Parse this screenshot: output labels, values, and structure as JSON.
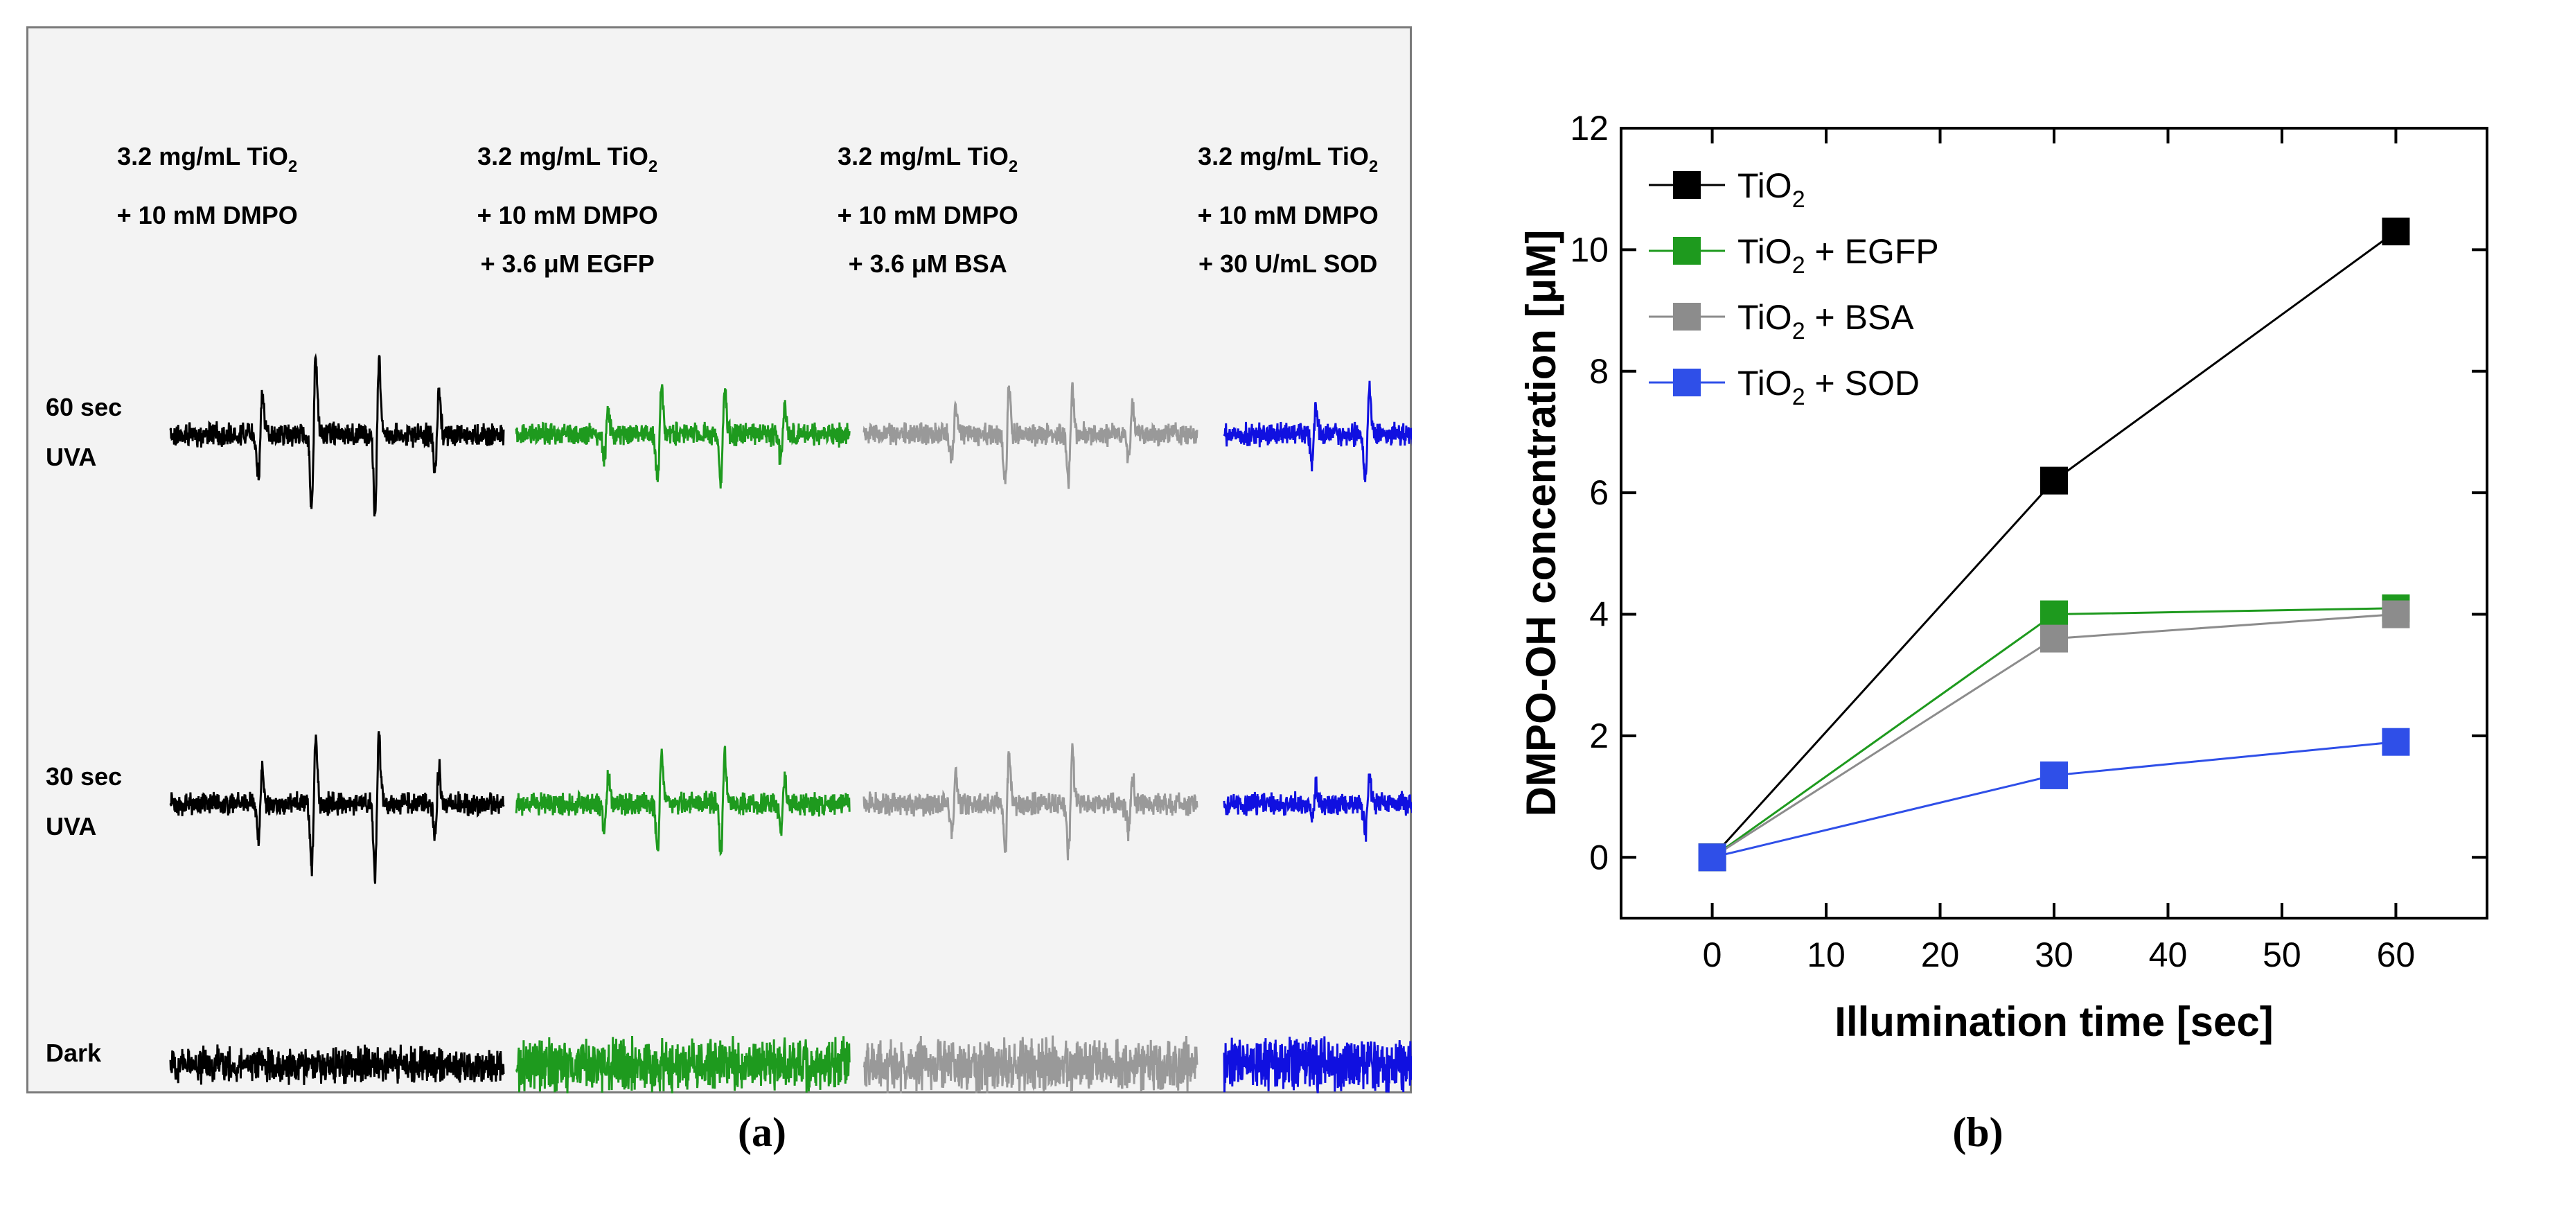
{
  "panel_a": {
    "caption": "(a)",
    "columns": [
      {
        "line1": "3.2 mg/mL TiO",
        "sub": "2",
        "line2": "+ 10 mM DMPO",
        "line3": "",
        "color": "#000000"
      },
      {
        "line1": "3.2 mg/mL TiO",
        "sub": "2",
        "line2": "+ 10 mM DMPO",
        "line3": "+ 3.6 μM EGFP",
        "color": "#1e9a1e"
      },
      {
        "line1": "3.2 mg/mL TiO",
        "sub": "2",
        "line2": "+ 10 mM DMPO",
        "line3": "+ 3.6 μM BSA",
        "color": "#999999"
      },
      {
        "line1": "3.2 mg/mL TiO",
        "sub": "2",
        "line2": "+ 10 mM DMPO",
        "line3": "+ 30 U/mL SOD",
        "color": "#1010e0"
      }
    ],
    "rows": [
      {
        "line1": "60 sec",
        "line2": "UVA"
      },
      {
        "line1": "30 sec",
        "line2": "UVA"
      },
      {
        "line1": "Dark",
        "line2": ""
      }
    ],
    "signal_scale": [
      [
        1.0,
        0.62,
        0.62,
        0.62
      ],
      [
        0.9,
        0.65,
        0.65,
        0.38
      ],
      [
        0.0,
        0.0,
        0.0,
        0.0
      ]
    ]
  },
  "chart_data": {
    "type": "line",
    "caption": "(b)",
    "xlabel": "Illumination time [sec]",
    "ylabel": "DMPO-OH concentration [μM]",
    "xlim": [
      -8,
      68
    ],
    "ylim": [
      -1,
      12
    ],
    "xticks": [
      0,
      10,
      20,
      30,
      40,
      50,
      60
    ],
    "yticks": [
      0,
      2,
      4,
      6,
      8,
      10,
      12
    ],
    "x": [
      0,
      30,
      60
    ],
    "legend_position": "top-left",
    "series": [
      {
        "name": "TiO",
        "sub": "2",
        "suffix": "",
        "color": "#000000",
        "values": [
          0,
          6.2,
          10.3
        ]
      },
      {
        "name": "TiO",
        "sub": "2",
        "suffix": " + EGFP",
        "color": "#1e9a1e",
        "values": [
          0,
          4.0,
          4.1
        ]
      },
      {
        "name": "TiO",
        "sub": "2",
        "suffix": " + BSA",
        "color": "#8c8c8c",
        "values": [
          0,
          3.6,
          4.0
        ]
      },
      {
        "name": "TiO",
        "sub": "2",
        "suffix": " + SOD",
        "color": "#2f4fe8",
        "values": [
          0,
          1.35,
          1.9
        ]
      }
    ]
  }
}
